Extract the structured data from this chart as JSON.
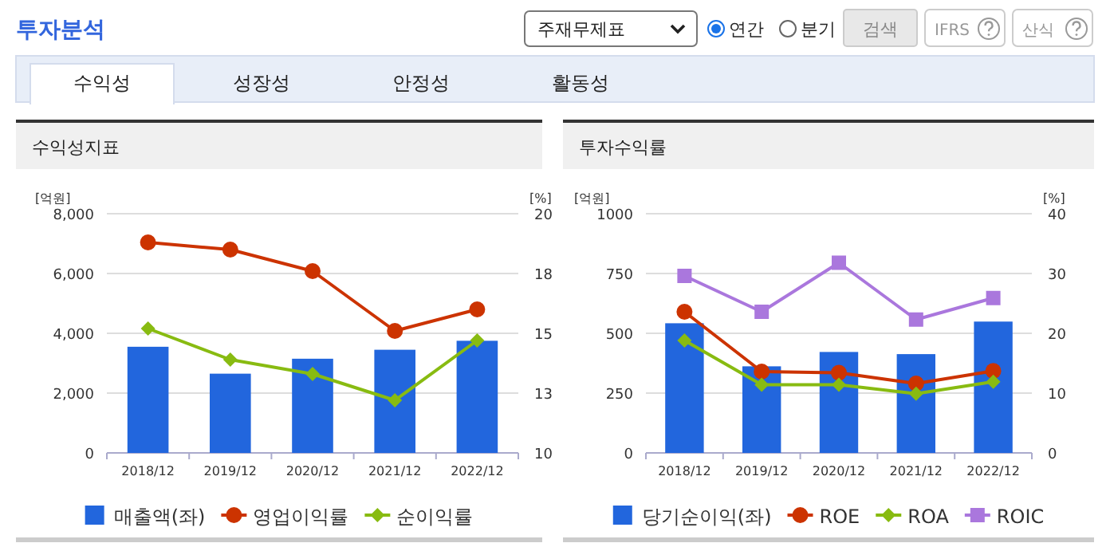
{
  "chart_data": [
    {
      "type": "other",
      "title": "투자분석",
      "annotations": [
        "주재무제표",
        "연간",
        "분기",
        "검색",
        "IFRS",
        "산식",
        "수익성",
        "성장성",
        "안정성",
        "활동성"
      ]
    },
    {
      "type": "bar",
      "title": "수익성지표",
      "ylabel": "[억원]",
      "y2label": "[%]",
      "categories": [
        "2018/12",
        "2019/12",
        "2020/12",
        "2021/12",
        "2022/12"
      ],
      "series": [
        {
          "name": "매출액(좌)",
          "type": "bar",
          "color": "#2266dd",
          "values": [
            3550,
            2650,
            3150,
            3450,
            3750
          ]
        },
        {
          "name": "영업이익률",
          "type": "line",
          "axis": "y2",
          "marker": "circle",
          "color": "#cc3300",
          "values": [
            18.8,
            18.5,
            17.6,
            15.1,
            16.0
          ]
        },
        {
          "name": "순이익률",
          "type": "line",
          "axis": "y2",
          "marker": "diamond",
          "color": "#88bb11",
          "values": [
            15.2,
            13.9,
            13.3,
            12.2,
            14.7
          ]
        }
      ],
      "ylim": [
        0,
        8000
      ],
      "yticks": [
        0,
        {
          "value": 2000,
          "label": "2,000"
        },
        {
          "value": 4000,
          "label": "4,000"
        },
        {
          "value": 6000,
          "label": "6,000"
        },
        {
          "value": 8000,
          "label": "8,000"
        }
      ],
      "y2lim": [
        10,
        20
      ],
      "y2ticks": [
        10,
        {
          "value": 12.5,
          "label": "13"
        },
        15,
        {
          "value": 17.5,
          "label": "18"
        },
        20
      ],
      "grid": "y",
      "legend": "bottom"
    },
    {
      "type": "bar",
      "title": "투자수익률",
      "ylabel": "[억원]",
      "y2label": "[%]",
      "categories": [
        "2018/12",
        "2019/12",
        "2020/12",
        "2021/12",
        "2022/12"
      ],
      "series": [
        {
          "name": "당기순이익(좌)",
          "type": "bar",
          "color": "#2266dd",
          "values": [
            542,
            362,
            422,
            413,
            549
          ]
        },
        {
          "name": "ROE",
          "type": "line",
          "axis": "y2",
          "marker": "circle",
          "color": "#cc3300",
          "values": [
            23.6,
            13.6,
            13.4,
            11.6,
            13.7
          ]
        },
        {
          "name": "ROA",
          "type": "line",
          "axis": "y2",
          "marker": "diamond",
          "color": "#88bb11",
          "values": [
            18.8,
            11.4,
            11.4,
            9.9,
            11.9
          ]
        },
        {
          "name": "ROIC",
          "type": "line",
          "axis": "y2",
          "marker": "square",
          "color": "#aa77dd",
          "values": [
            29.6,
            23.6,
            31.8,
            22.3,
            25.9
          ]
        }
      ],
      "ylim": [
        0,
        1000
      ],
      "yticks": [
        0,
        250,
        500,
        750,
        1000
      ],
      "y2lim": [
        0,
        40
      ],
      "y2ticks": [
        0,
        10,
        20,
        30,
        40
      ],
      "grid": "y",
      "legend": "bottom"
    }
  ]
}
